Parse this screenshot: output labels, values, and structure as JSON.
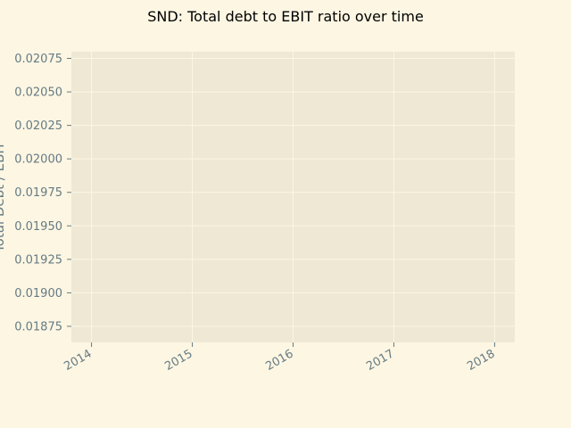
{
  "chart_data": {
    "type": "line",
    "title": "SND: Total debt to EBIT ratio over time",
    "xlabel": "",
    "ylabel": "Total Debt / EBIT",
    "x_ticks": [
      "2014",
      "2015",
      "2016",
      "2017",
      "2018"
    ],
    "y_ticks": [
      "0.01875",
      "0.01900",
      "0.01925",
      "0.01950",
      "0.01975",
      "0.02000",
      "0.02025",
      "0.02050",
      "0.02075"
    ],
    "xlim": [
      2013.8,
      2018.2
    ],
    "ylim": [
      0.01863,
      0.0208
    ],
    "series": [],
    "grid": true,
    "colors": {
      "background": "#fdf6e3",
      "plot_background": "#eee8d5",
      "grid": "#fdf6e3",
      "tick_text": "#657b83",
      "title_text": "#000000"
    }
  }
}
